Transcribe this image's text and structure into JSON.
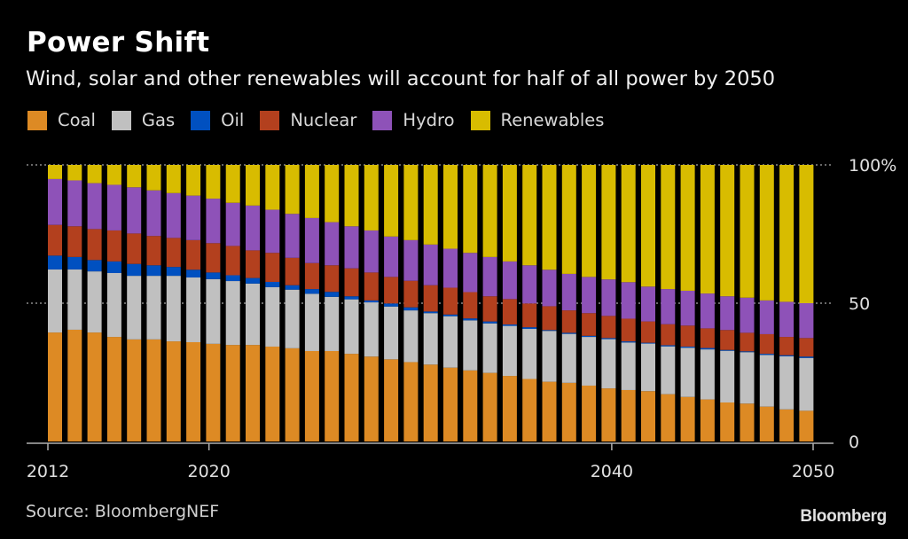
{
  "chart_data": {
    "type": "bar",
    "stacked": true,
    "title": "Power Shift",
    "subtitle": "Wind, solar and other renewables will account for half of all power by 2050",
    "xlabel": "",
    "ylabel": "",
    "ylim": [
      0,
      100
    ],
    "y_ticks": [
      {
        "value": 100,
        "label": "100%"
      },
      {
        "value": 50,
        "label": "50"
      },
      {
        "value": 0,
        "label": "0"
      }
    ],
    "x_ticks": [
      {
        "value": 2012,
        "label": "2012"
      },
      {
        "value": 2020,
        "label": "2020"
      },
      {
        "value": 2040,
        "label": "2040"
      },
      {
        "value": 2050,
        "label": "2050"
      }
    ],
    "grid": true,
    "legend_position": "top-left",
    "categories": [
      2012,
      2013,
      2014,
      2015,
      2016,
      2017,
      2018,
      2019,
      2020,
      2021,
      2022,
      2023,
      2024,
      2025,
      2026,
      2027,
      2028,
      2029,
      2030,
      2031,
      2032,
      2033,
      2034,
      2035,
      2036,
      2037,
      2038,
      2039,
      2040,
      2041,
      2042,
      2043,
      2044,
      2045,
      2046,
      2047,
      2048,
      2049,
      2050
    ],
    "series": [
      {
        "name": "Coal",
        "color": "#dd8a24",
        "values": [
          39.4,
          40.4,
          39.4,
          37.8,
          36.9,
          36.9,
          36.2,
          35.9,
          35.3,
          34.9,
          34.9,
          34.3,
          33.7,
          32.7,
          32.7,
          31.7,
          30.7,
          29.7,
          28.7,
          27.8,
          26.7,
          25.7,
          24.8,
          23.7,
          22.6,
          21.6,
          21.2,
          20.2,
          19.2,
          18.6,
          18.2,
          17.1,
          16.1,
          15.2,
          14.1,
          13.7,
          12.6,
          11.6,
          11.1
        ]
      },
      {
        "name": "Gas",
        "color": "#c0c0c0",
        "values": [
          22.8,
          21.8,
          22.1,
          23.1,
          23.0,
          23.0,
          23.7,
          23.4,
          23.4,
          23.1,
          22.2,
          21.5,
          21.2,
          20.7,
          19.6,
          19.7,
          19.6,
          19.1,
          18.7,
          18.6,
          18.6,
          18.1,
          17.9,
          18.1,
          18.1,
          18.4,
          17.7,
          17.6,
          17.8,
          17.2,
          17.2,
          17.3,
          17.8,
          18.1,
          18.7,
          18.6,
          18.7,
          19.2,
          19.1
        ]
      },
      {
        "name": "Oil",
        "color": "#0050c0",
        "values": [
          5.0,
          4.5,
          4.1,
          4.2,
          4.3,
          3.8,
          3.2,
          2.8,
          2.4,
          2.1,
          2.0,
          1.9,
          1.6,
          1.7,
          1.8,
          1.1,
          0.7,
          1.1,
          1.1,
          0.6,
          0.6,
          0.7,
          0.7,
          0.5,
          0.6,
          0.3,
          0.4,
          0.4,
          0.4,
          0.4,
          0.3,
          0.4,
          0.4,
          0.5,
          0.3,
          0.3,
          0.4,
          0.4,
          0.5
        ]
      },
      {
        "name": "Nuclear",
        "color": "#b3401e",
        "values": [
          11.1,
          11.1,
          11.2,
          11.2,
          11.0,
          10.6,
          10.5,
          10.7,
          10.6,
          10.6,
          10.0,
          10.5,
          9.9,
          9.4,
          9.6,
          10.1,
          10.1,
          9.6,
          9.6,
          9.5,
          9.7,
          9.5,
          9.1,
          9.2,
          8.6,
          8.6,
          8.1,
          8.2,
          8.0,
          8.2,
          7.7,
          7.6,
          7.6,
          7.1,
          7.2,
          6.7,
          7.1,
          6.6,
          6.7
        ]
      },
      {
        "name": "Hydro",
        "color": "#8e52b8",
        "values": [
          16.6,
          16.6,
          16.6,
          16.5,
          16.7,
          16.5,
          16.2,
          16.1,
          16.1,
          15.6,
          16.2,
          15.6,
          15.9,
          16.3,
          15.6,
          15.2,
          15.2,
          14.6,
          14.7,
          14.7,
          14.1,
          14.2,
          14.2,
          13.6,
          13.8,
          13.2,
          13.2,
          13.1,
          13.2,
          13.2,
          12.6,
          12.7,
          12.6,
          12.6,
          12.2,
          12.7,
          12.2,
          12.7,
          12.6
        ]
      },
      {
        "name": "Renewables",
        "color": "#d8bc00",
        "values": [
          5.1,
          5.6,
          6.6,
          7.2,
          8.1,
          9.2,
          10.2,
          11.1,
          12.2,
          13.7,
          14.7,
          16.2,
          17.7,
          19.2,
          20.7,
          22.2,
          23.7,
          25.9,
          27.2,
          28.8,
          30.3,
          31.8,
          33.3,
          34.9,
          36.3,
          37.9,
          39.4,
          40.5,
          41.4,
          42.4,
          44.0,
          44.9,
          45.5,
          46.5,
          47.5,
          48.0,
          49.0,
          49.5,
          50.0
        ]
      }
    ]
  },
  "footer": {
    "source": "Source: BloombergNEF",
    "brand": "Bloomberg"
  }
}
